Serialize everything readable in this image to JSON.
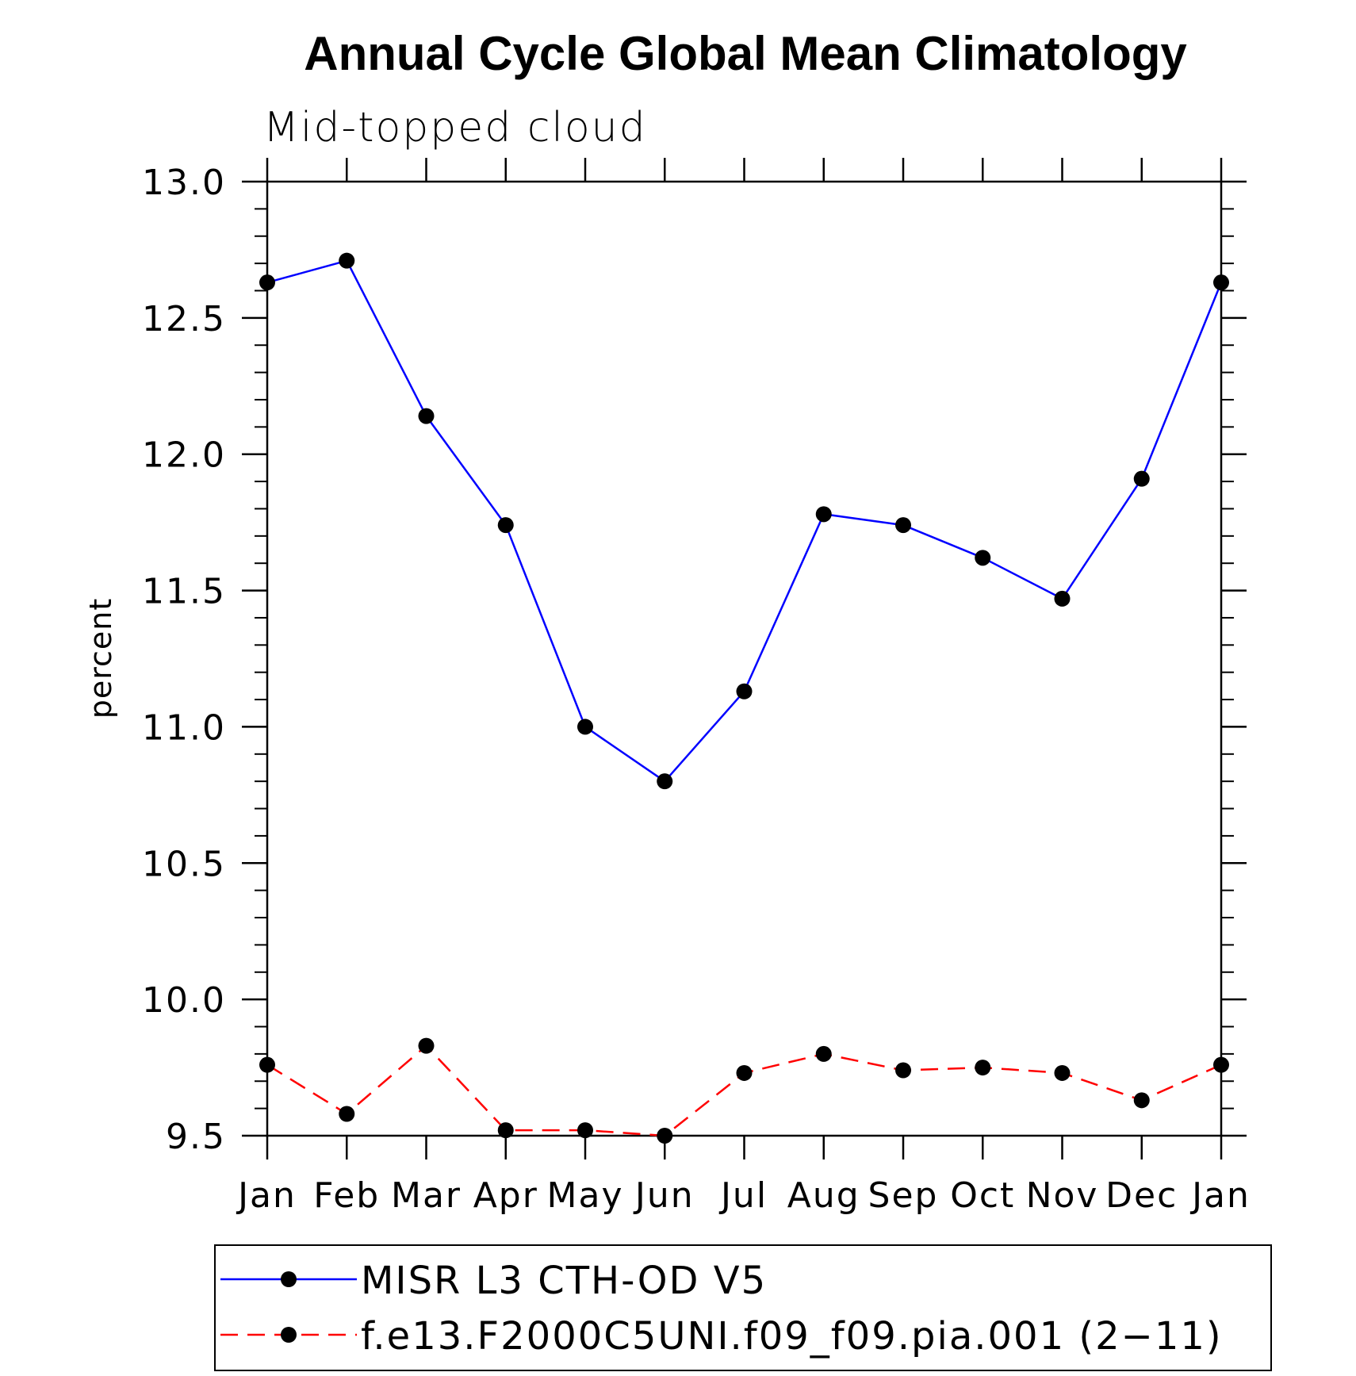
{
  "chart_data": {
    "type": "line",
    "title": "Annual Cycle Global Mean Climatology",
    "subtitle": "Mid-topped cloud",
    "xlabel": "",
    "ylabel": "percent",
    "categories": [
      "Jan",
      "Feb",
      "Mar",
      "Apr",
      "May",
      "Jun",
      "Jul",
      "Aug",
      "Sep",
      "Oct",
      "Nov",
      "Dec",
      "Jan"
    ],
    "ylim": [
      9.5,
      13.0
    ],
    "yticks": [
      "9.5",
      "10.0",
      "10.5",
      "11.0",
      "11.5",
      "12.0",
      "12.5",
      "13.0"
    ],
    "y_minor_step": 0.1,
    "grid": false,
    "legend_position": "bottom",
    "series": [
      {
        "name": "MISR L3 CTH-OD V5",
        "color": "#0000ff",
        "dash": "solid",
        "marker": "filled-circle",
        "values": [
          12.63,
          12.71,
          12.14,
          11.74,
          11.0,
          10.8,
          11.13,
          11.78,
          11.74,
          11.62,
          11.47,
          11.91,
          12.63
        ]
      },
      {
        "name": "f.e13.F2000C5UNI.f09_f09.pia.001 (2−11)",
        "color": "#ff0000",
        "dash": "dashed",
        "marker": "filled-circle",
        "values": [
          9.76,
          9.58,
          9.83,
          9.52,
          9.52,
          9.5,
          9.73,
          9.8,
          9.74,
          9.75,
          9.73,
          9.63,
          9.76
        ]
      }
    ]
  }
}
